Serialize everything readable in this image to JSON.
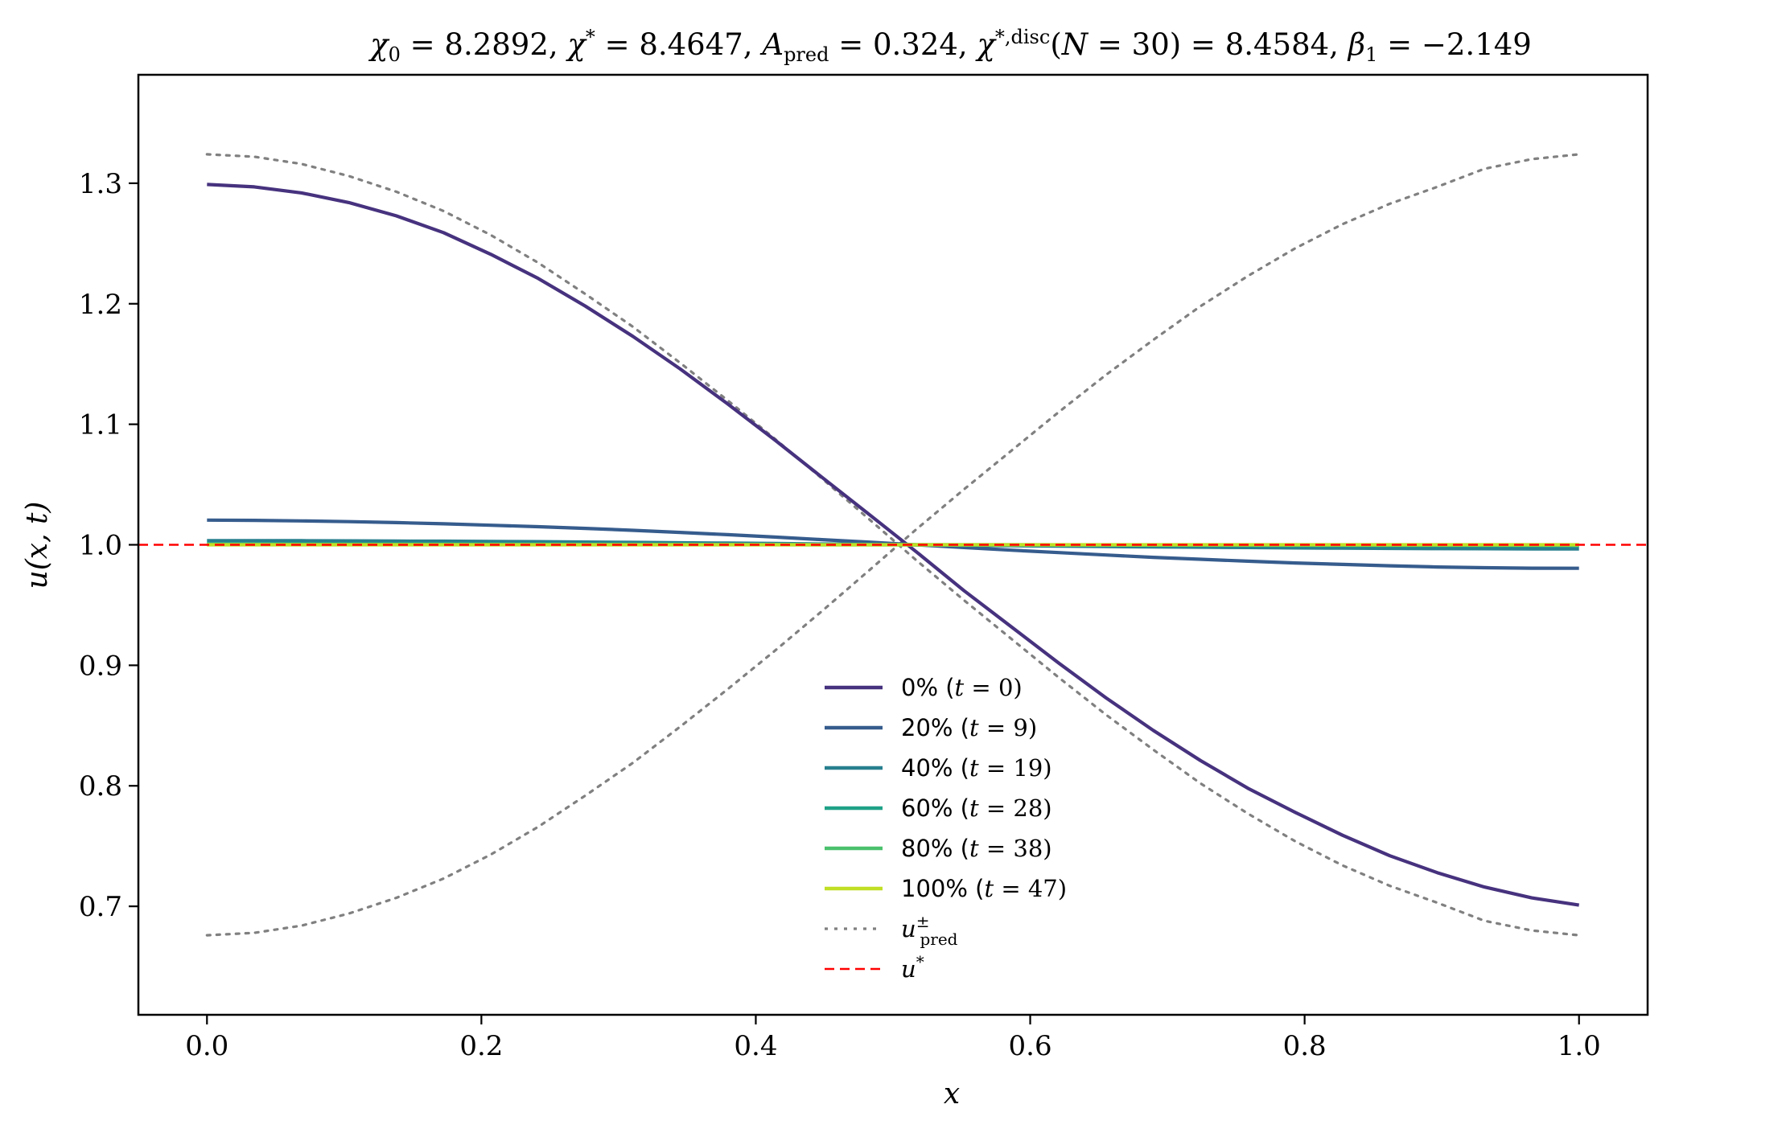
{
  "chart_data": {
    "type": "line",
    "title": "χ₀ = 8.2892,  χ* = 8.4647,  A_pred = 0.324,  χ*,disc(N = 30) = 8.4584,  β₁ = −2.149",
    "xlabel": "x",
    "ylabel": "u(x, t)",
    "xlim": [
      -0.05,
      1.05
    ],
    "ylim": [
      0.61,
      1.39
    ],
    "xticks": [
      0.0,
      0.2,
      0.4,
      0.6,
      0.8,
      1.0
    ],
    "xtick_labels": [
      "0.0",
      "0.2",
      "0.4",
      "0.6",
      "0.8",
      "1.0"
    ],
    "yticks": [
      0.7,
      0.8,
      0.9,
      1.0,
      1.1,
      1.2,
      1.3
    ],
    "ytick_labels": [
      "0.7",
      "0.8",
      "0.9",
      "1.0",
      "1.1",
      "1.2",
      "1.3"
    ],
    "grid": false,
    "legend_placement": "lower-center",
    "x": [
      0.0,
      0.0345,
      0.069,
      0.1034,
      0.1379,
      0.1724,
      0.2069,
      0.2414,
      0.2759,
      0.3103,
      0.3448,
      0.3793,
      0.4138,
      0.4483,
      0.4828,
      0.5172,
      0.5517,
      0.5862,
      0.6207,
      0.6552,
      0.6897,
      0.7241,
      0.7586,
      0.7931,
      0.8276,
      0.8621,
      0.8966,
      0.931,
      0.9655,
      1.0
    ],
    "series": [
      {
        "name": "0% (t = 0)",
        "color": "#46327e",
        "style": "solid",
        "values": [
          1.299,
          1.297,
          1.292,
          1.284,
          1.273,
          1.259,
          1.241,
          1.221,
          1.198,
          1.173,
          1.146,
          1.117,
          1.087,
          1.056,
          1.025,
          0.994,
          0.962,
          0.932,
          0.902,
          0.873,
          0.846,
          0.821,
          0.798,
          0.778,
          0.759,
          0.742,
          0.728,
          0.716,
          0.707,
          0.701
        ]
      },
      {
        "name": "20% (t = 9)",
        "color": "#365c8d",
        "style": "solid",
        "values": [
          1.0205,
          1.0203,
          1.0198,
          1.0192,
          1.0184,
          1.0174,
          1.0162,
          1.015,
          1.0136,
          1.012,
          1.0103,
          1.0084,
          1.0064,
          1.0043,
          1.0022,
          0.9999,
          0.9977,
          0.9955,
          0.9935,
          0.9915,
          0.9896,
          0.988,
          0.9864,
          0.9849,
          0.9837,
          0.9826,
          0.9816,
          0.981,
          0.9806,
          0.9805
        ]
      },
      {
        "name": "40% (t = 19)",
        "color": "#277f8e",
        "style": "solid",
        "values": [
          1.0035,
          1.0035,
          1.0034,
          1.0033,
          1.0031,
          1.003,
          1.0028,
          1.0026,
          1.0023,
          1.002,
          1.0017,
          1.0014,
          1.0011,
          1.0007,
          1.0004,
          0.9999,
          0.9996,
          0.9992,
          0.9989,
          0.9985,
          0.9982,
          0.998,
          0.9977,
          0.9974,
          0.9972,
          0.997,
          0.9968,
          0.9967,
          0.9966,
          0.9965
        ]
      },
      {
        "name": "60% (t = 28)",
        "color": "#1fa187",
        "style": "solid",
        "values": [
          1.0008,
          1.0008,
          1.0008,
          1.0007,
          1.0007,
          1.0007,
          1.0006,
          1.0006,
          1.0005,
          1.0005,
          1.0004,
          1.0003,
          1.0003,
          1.0002,
          1.0001,
          1.0,
          0.9999,
          0.9998,
          0.9997,
          0.9997,
          0.9996,
          0.9995,
          0.9995,
          0.9994,
          0.9994,
          0.9993,
          0.9993,
          0.9993,
          0.9992,
          0.9992
        ]
      },
      {
        "name": "80% (t = 38)",
        "color": "#4ac16d",
        "style": "solid",
        "values": [
          1.0002,
          1.0002,
          1.0002,
          1.0002,
          1.0002,
          1.0002,
          1.0001,
          1.0001,
          1.0001,
          1.0001,
          1.0001,
          1.0001,
          1.0001,
          1.0,
          1.0,
          1.0,
          1.0,
          1.0,
          0.9999,
          0.9999,
          0.9999,
          0.9999,
          0.9999,
          0.9999,
          0.9999,
          0.9998,
          0.9998,
          0.9998,
          0.9998,
          0.9998
        ]
      },
      {
        "name": "100% (t = 47)",
        "color": "#c0df25",
        "style": "solid",
        "values": [
          1.0,
          1.0,
          1.0,
          1.0,
          1.0,
          1.0,
          1.0,
          1.0,
          1.0,
          1.0,
          1.0,
          1.0,
          1.0,
          1.0,
          1.0,
          1.0,
          1.0,
          1.0,
          1.0,
          1.0,
          1.0,
          1.0,
          1.0,
          1.0,
          1.0,
          1.0,
          1.0,
          1.0,
          1.0,
          1.0
        ]
      },
      {
        "name": "u±pred",
        "color": "#808080",
        "style": "dotted",
        "label_parts": {
          "base": "u",
          "sup": "±",
          "sub": "pred"
        },
        "values": [
          1.324,
          1.322,
          1.316,
          1.306,
          1.293,
          1.277,
          1.257,
          1.234,
          1.208,
          1.181,
          1.151,
          1.12,
          1.088,
          1.055,
          1.021,
          0.987,
          0.954,
          0.922,
          0.89,
          0.859,
          0.83,
          0.802,
          0.777,
          0.754,
          0.734,
          0.717,
          0.703,
          0.688,
          0.68,
          0.676
        ]
      },
      {
        "name": "u±pred (lower)",
        "color": "#808080",
        "style": "dotted",
        "values": [
          0.676,
          0.678,
          0.684,
          0.694,
          0.707,
          0.723,
          0.743,
          0.766,
          0.792,
          0.819,
          0.849,
          0.88,
          0.912,
          0.945,
          0.979,
          1.013,
          1.046,
          1.078,
          1.11,
          1.141,
          1.17,
          1.198,
          1.223,
          1.246,
          1.266,
          1.283,
          1.297,
          1.312,
          1.32,
          1.324
        ]
      }
    ],
    "hlines": [
      {
        "name": "u*",
        "y": 1.0,
        "color": "#ff0000",
        "style": "dashed",
        "label_parts": {
          "base": "u",
          "sup": "*"
        }
      }
    ],
    "legend": [
      "0% (t = 0)",
      "20% (t = 9)",
      "40% (t = 19)",
      "60% (t = 28)",
      "80% (t = 38)",
      "100% (t = 47)",
      "u±pred",
      "u*"
    ]
  }
}
